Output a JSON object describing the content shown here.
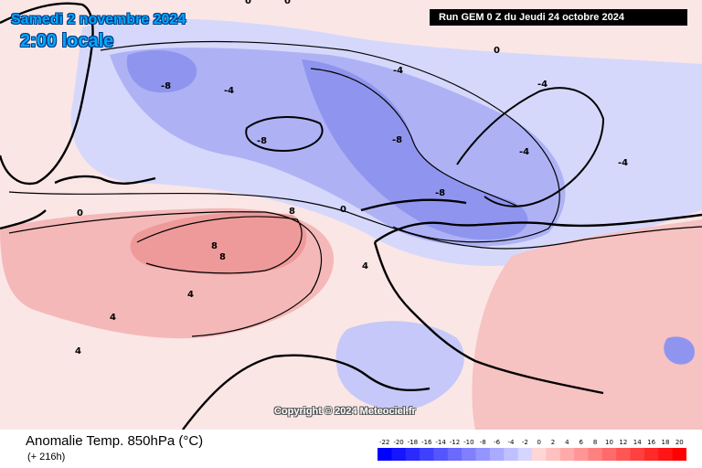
{
  "header": {
    "date": "Samedi 2 novembre 2024",
    "local_time": "2:00 locale",
    "run": "Run GEM 0 Z du Jeudi 24 octobre 2024",
    "copyright": "Copyright © 2024 Meteociel.fr"
  },
  "footer": {
    "title": "Anomalie Temp. 850hPa (°C)",
    "lead_time": "(+ 216h)"
  },
  "scale": {
    "ticks": [
      "-22",
      "-20",
      "-18",
      "-16",
      "-14",
      "-12",
      "-10",
      "-8",
      "-6",
      "-4",
      "-2",
      "0",
      "2",
      "4",
      "6",
      "8",
      "10",
      "12",
      "14",
      "16",
      "18",
      "20"
    ],
    "colors": [
      "#0000ff",
      "#1515ff",
      "#2a2aff",
      "#4040ff",
      "#5555ff",
      "#6a6aff",
      "#8080ff",
      "#9595ff",
      "#aaaaff",
      "#c0c0ff",
      "#d5d5ff",
      "#ffd5d5",
      "#ffc0c0",
      "#ffaaaa",
      "#ff9595",
      "#ff8080",
      "#ff6a6a",
      "#ff5555",
      "#ff4040",
      "#ff2a2a",
      "#ff1515",
      "#ff0000"
    ]
  },
  "map": {
    "variable": "850hPa temperature anomaly",
    "contour_labels": [
      "-8",
      "-8",
      "-8",
      "-8",
      "-4",
      "-4",
      "-4",
      "-4",
      "-4",
      "0",
      "0",
      "0",
      "0",
      "0",
      "4",
      "4",
      "4",
      "4",
      "8",
      "8",
      "8"
    ],
    "anomaly_colors": {
      "cold_strong": "#8a8cf0",
      "cold": "#b4b6f6",
      "cold_weak": "#d8d9fb",
      "neutral": "#ffffff",
      "warm_weak": "#fbe0e0",
      "warm": "#f7b9b9",
      "warm_strong": "#f08f8f"
    }
  }
}
